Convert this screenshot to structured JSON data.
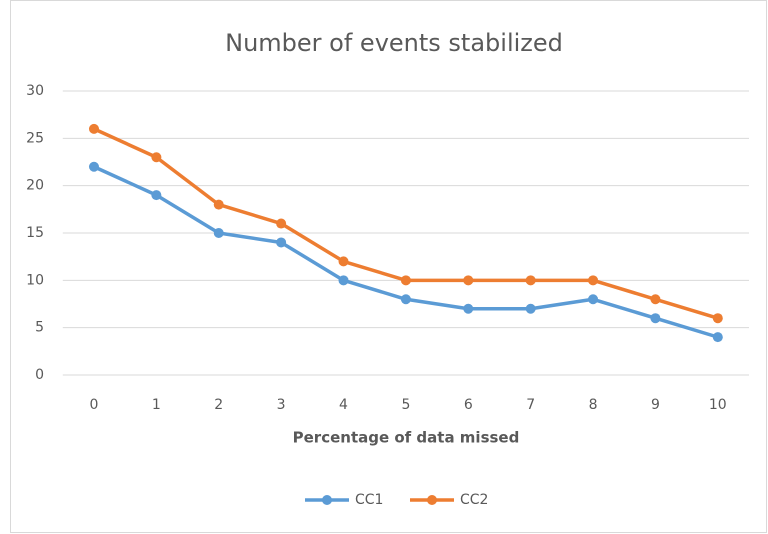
{
  "chart_data": {
    "type": "line",
    "title": "Number of events stabilized",
    "x_label": "Percentage of data missed",
    "categories": [
      "0",
      "1",
      "2",
      "3",
      "4",
      "5",
      "6",
      "7",
      "8",
      "9",
      "10"
    ],
    "series": [
      {
        "name": "CC1",
        "color": "#5b9bd5",
        "values": [
          22,
          19,
          15,
          14,
          10,
          8,
          7,
          7,
          8,
          6,
          4
        ]
      },
      {
        "name": "CC2",
        "color": "#ed7d31",
        "values": [
          26,
          23,
          18,
          16,
          12,
          10,
          10,
          10,
          10,
          8,
          6
        ]
      }
    ],
    "ylim": [
      0,
      30
    ],
    "yticks": [
      0,
      5,
      10,
      15,
      20,
      25,
      30
    ],
    "grid": true,
    "legend": "bottom"
  }
}
